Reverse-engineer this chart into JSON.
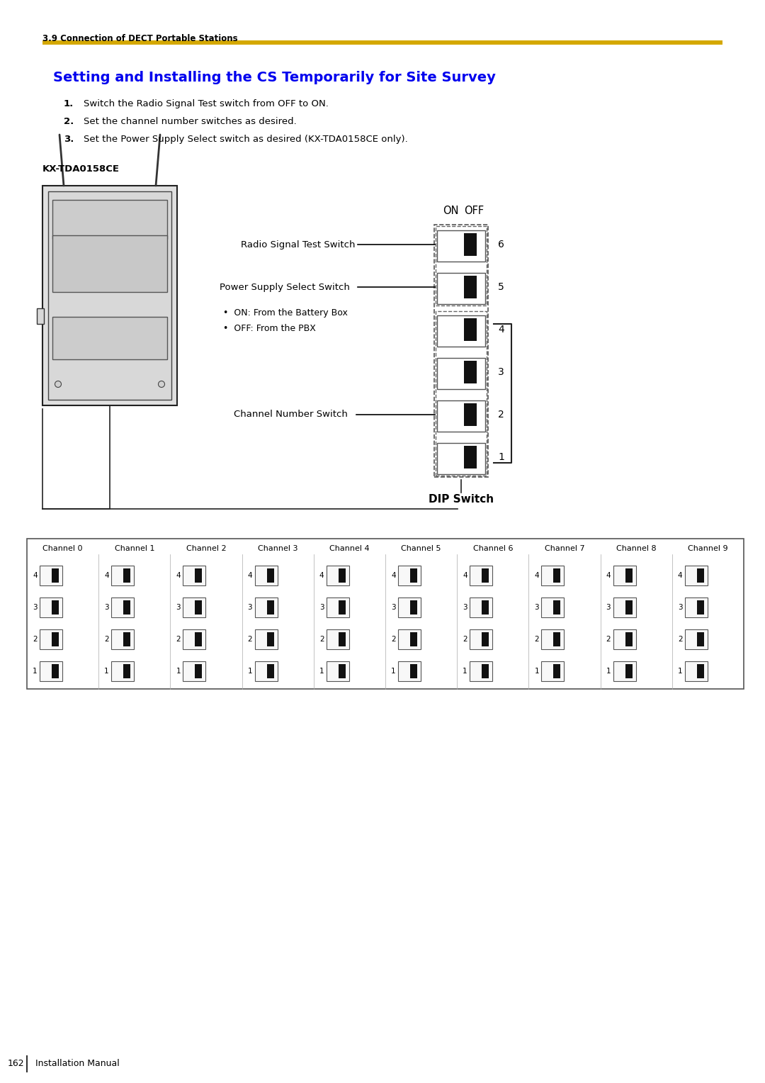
{
  "page_bg": "#ffffff",
  "section_label": "3.9 Connection of DECT Portable Stations",
  "section_label_color": "#000000",
  "section_label_fontsize": 8.5,
  "gold_bar_color": "#D4A800",
  "title": "Setting and Installing the CS Temporarily for Site Survey",
  "title_color": "#0000EE",
  "title_fontsize": 14,
  "steps": [
    "Switch the Radio Signal Test switch from OFF to ON.",
    "Set the channel number switches as desired.",
    "Set the Power Supply Select switch as desired (KX-TDA0158CE only)."
  ],
  "steps_fontsize": 9.5,
  "kx_label": "KX-TDA0158CE",
  "kx_label_fontsize": 9.5,
  "on_label": "ON",
  "off_label": "OFF",
  "dip_switch_label": "DIP Switch",
  "switch_labels": [
    "Radio Signal Test Switch",
    "Power Supply Select Switch",
    "Channel Number Switch"
  ],
  "bullet_lines": [
    "ON: From the Battery Box",
    "OFF: From the PBX"
  ],
  "switch_numbers": [
    "6",
    "5",
    "4",
    "3",
    "2",
    "1"
  ],
  "channel_headers": [
    "Channel 0",
    "Channel 1",
    "Channel 2",
    "Channel 3",
    "Channel 4",
    "Channel 5",
    "Channel 6",
    "Channel 7",
    "Channel 8",
    "Channel 9"
  ],
  "channel_rows": [
    "4",
    "3",
    "2",
    "1"
  ],
  "footer_text": "162",
  "footer_label": "Installation Manual"
}
